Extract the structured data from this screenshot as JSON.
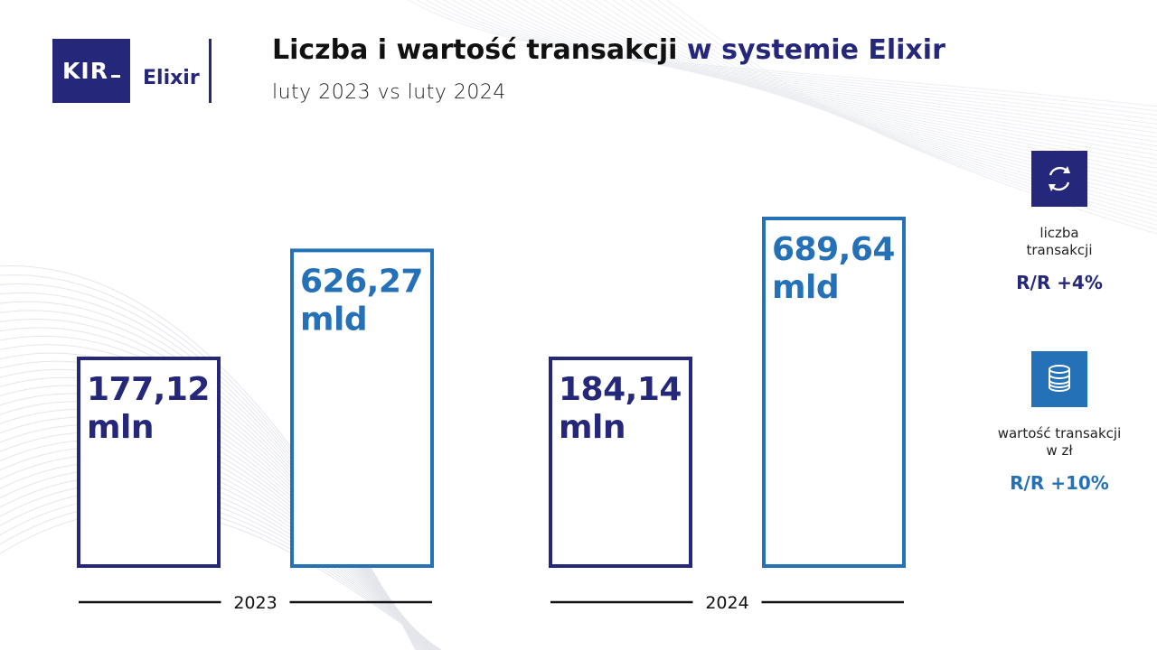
{
  "logo": {
    "kir": "KIR",
    "elixir": "Elixir"
  },
  "header": {
    "title_part1": "Liczba i wartość transakcji",
    "title_part2": "w systemie Elixir",
    "subtitle": "luty 2023 vs luty 2024"
  },
  "colors": {
    "navy": "#25287a",
    "blue": "#2471b8"
  },
  "chart_data": {
    "type": "bar",
    "title": "Liczba i wartość transakcji w systemie Elixir",
    "subtitle": "luty 2023 vs luty 2024",
    "categories": [
      "2023",
      "2024"
    ],
    "series": [
      {
        "name": "liczba transakcji",
        "unit": "mln",
        "values": [
          177.12,
          184.14
        ],
        "labels": [
          "177,12",
          "184,14"
        ],
        "color": "#25287a"
      },
      {
        "name": "wartość transakcji w zł",
        "unit": "mld",
        "values": [
          626.27,
          689.64
        ],
        "labels": [
          "626,27",
          "689,64"
        ],
        "color": "#2471b8"
      }
    ],
    "legend_placement": "right",
    "grid": false
  },
  "legend": [
    {
      "icon": "exchange-arrows-icon",
      "label_line1": "liczba",
      "label_line2": "transakcji",
      "yoy": "R/R +4%",
      "color": "#25287a"
    },
    {
      "icon": "coin-stack-icon",
      "label_line1": "wartość transakcji",
      "label_line2": "w zł",
      "yoy": "R/R +10%",
      "color": "#2471b8"
    }
  ]
}
